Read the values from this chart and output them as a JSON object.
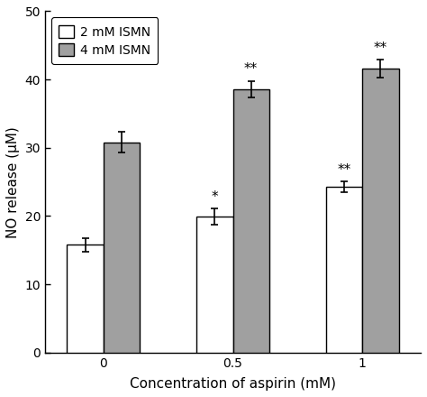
{
  "categories": [
    0,
    0.5,
    1
  ],
  "category_labels": [
    "0",
    "0.5",
    "1"
  ],
  "series1_label": "2 mM ISMN",
  "series2_label": "4 mM ISMN",
  "series1_values": [
    15.8,
    19.9,
    24.3
  ],
  "series2_values": [
    30.8,
    38.6,
    41.6
  ],
  "series1_errors": [
    1.0,
    1.2,
    0.8
  ],
  "series2_errors": [
    1.5,
    1.2,
    1.3
  ],
  "series1_color": "#ffffff",
  "series2_color": "#a0a0a0",
  "bar_edge_color": "#000000",
  "xlabel": "Concentration of aspirin (mM)",
  "ylabel": "NO release (μM)",
  "ylim": [
    0,
    50
  ],
  "yticks": [
    0,
    10,
    20,
    30,
    40,
    50
  ],
  "bar_width": 0.28,
  "annotations_series1": [
    "",
    "*",
    "**"
  ],
  "annotations_series2": [
    "",
    "**",
    "**"
  ],
  "background_color": "#ffffff",
  "tick_fontsize": 10,
  "label_fontsize": 11,
  "legend_fontsize": 10,
  "error_capsize": 3,
  "error_linewidth": 1.2
}
